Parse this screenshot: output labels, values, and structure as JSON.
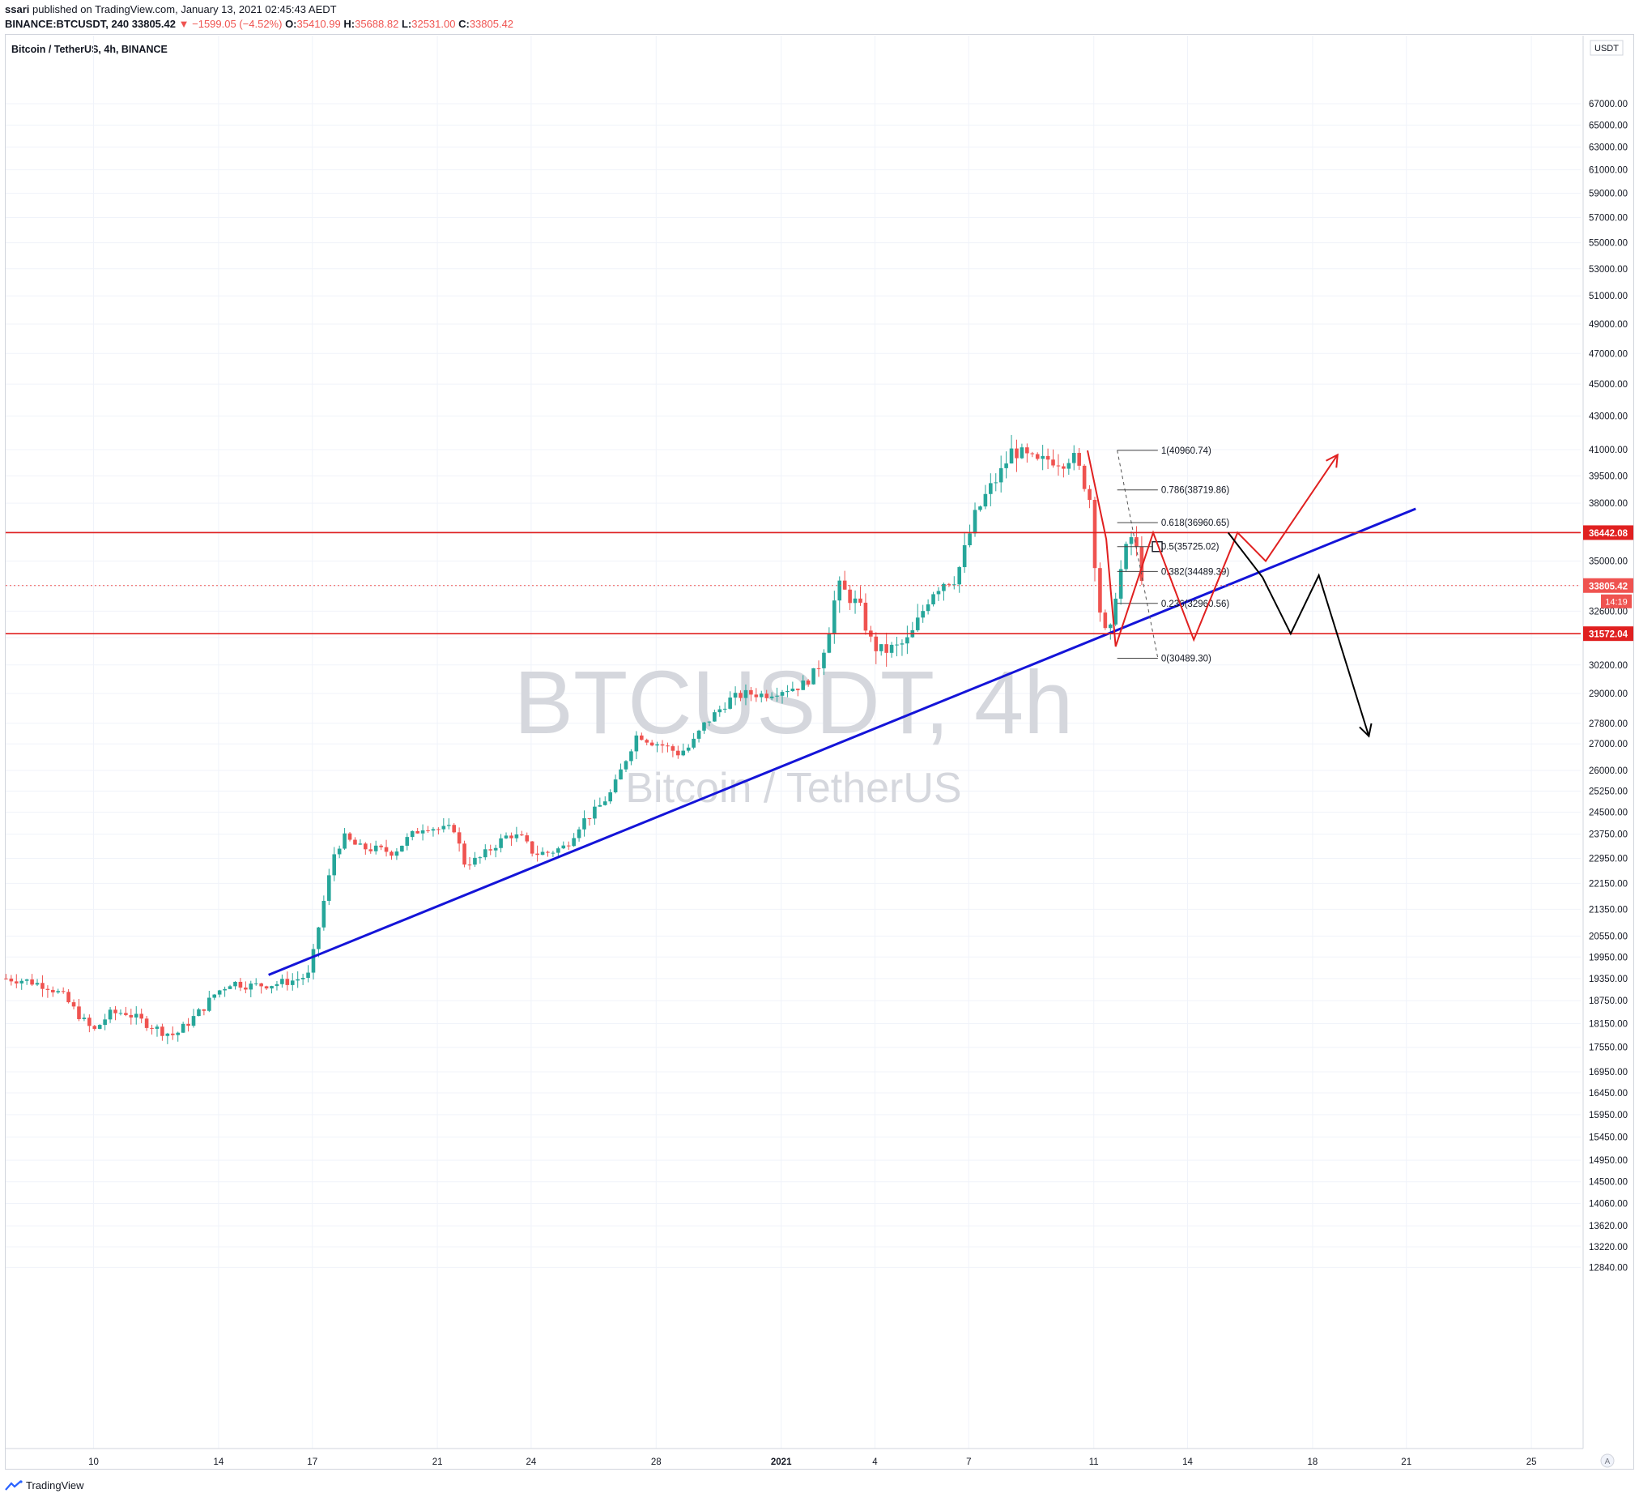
{
  "header": {
    "author": "ssari",
    "published_text": "published on TradingView.com, January 13, 2021 02:45:43 AEDT",
    "symbol_line": "BINANCE:BTCUSDT, 240",
    "price": "33805.42",
    "change": "−1599.05 (−4.52%)",
    "o_label": "O:",
    "o_value": "35410.99",
    "h_label": "H:",
    "h_value": "35688.82",
    "l_label": "L:",
    "l_value": "32531.00",
    "c_label": "C:",
    "c_value": "33805.42"
  },
  "pair_title": "Bitcoin / TetherUS, 4h, BINANCE",
  "footer": {
    "brand": "TradingView"
  },
  "colors": {
    "up": "#26a69a",
    "down": "#ef5350",
    "trendline": "#1414d8",
    "level": "#e02020",
    "grid": "#f0f3fa",
    "axis_text": "#131722",
    "watermark": "#d5d7dd"
  },
  "chart_data": {
    "type": "candlestick",
    "symbol": "BTCUSDT",
    "interval": "4h",
    "watermark": {
      "main": "BTCUSDT, 4h",
      "sub": "Bitcoin / TetherUS"
    },
    "currency": "USDT",
    "y_scale": "log",
    "y_ticks": [
      67000,
      65000,
      63000,
      61000,
      59000,
      57000,
      55000,
      53000,
      51000,
      49000,
      47000,
      45000,
      43000,
      41000,
      39500,
      38000,
      36500,
      35000,
      33800,
      32600,
      31400,
      30200,
      29000,
      27800,
      27000,
      26000,
      25250,
      24500,
      23750,
      22950,
      22150,
      21350,
      20550,
      19950,
      19350,
      18750,
      18150,
      17550,
      16950,
      16450,
      15950,
      15450,
      14950,
      14500,
      14060,
      13620,
      13220,
      12840
    ],
    "y_tick_labels": [
      "67000.00",
      "65000.00",
      "63000.00",
      "61000.00",
      "59000.00",
      "57000.00",
      "55000.00",
      "53000.00",
      "51000.00",
      "49000.00",
      "47000.00",
      "45000.00",
      "43000.00",
      "41000.00",
      "39500.00",
      "38000.00",
      "36500.00",
      "35000.00",
      "33800.00",
      "32600.00",
      "31400.00",
      "30200.00",
      "29000.00",
      "27800.00",
      "27000.00",
      "26000.00",
      "25250.00",
      "24500.00",
      "23750.00",
      "22950.00",
      "22150.00",
      "21350.00",
      "20550.00",
      "19950.00",
      "19350.00",
      "18750.00",
      "18150.00",
      "17550.00",
      "16950.00",
      "16450.00",
      "15950.00",
      "15450.00",
      "14950.00",
      "14500.00",
      "14060.00",
      "13620.00",
      "13220.00",
      "12840.00"
    ],
    "x_ticks": [
      {
        "label": "10",
        "day": 10
      },
      {
        "label": "14",
        "day": 14
      },
      {
        "label": "17",
        "day": 17
      },
      {
        "label": "21",
        "day": 21
      },
      {
        "label": "24",
        "day": 24
      },
      {
        "label": "28",
        "day": 28
      },
      {
        "label": "2021",
        "day": 32
      },
      {
        "label": "4",
        "day": 35
      },
      {
        "label": "7",
        "day": 38
      },
      {
        "label": "11",
        "day": 42
      },
      {
        "label": "14",
        "day": 45
      },
      {
        "label": "18",
        "day": 49
      },
      {
        "label": "21",
        "day": 52
      },
      {
        "label": "25",
        "day": 56
      }
    ],
    "price_path": [
      [
        7.2,
        19350
      ],
      [
        7.8,
        19300
      ],
      [
        8.5,
        19150
      ],
      [
        9.0,
        18900
      ],
      [
        9.6,
        18300
      ],
      [
        10.0,
        17950
      ],
      [
        10.5,
        18400
      ],
      [
        11.0,
        18450
      ],
      [
        11.7,
        18150
      ],
      [
        12.2,
        17950
      ],
      [
        12.6,
        17850
      ],
      [
        13.0,
        18150
      ],
      [
        13.5,
        18550
      ],
      [
        13.9,
        18950
      ],
      [
        14.4,
        19250
      ],
      [
        15.0,
        19150
      ],
      [
        15.8,
        19200
      ],
      [
        16.4,
        19300
      ],
      [
        16.9,
        19450
      ],
      [
        17.3,
        21300
      ],
      [
        17.7,
        23100
      ],
      [
        18.0,
        23650
      ],
      [
        18.5,
        23300
      ],
      [
        19.0,
        23250
      ],
      [
        19.6,
        23150
      ],
      [
        20.1,
        23650
      ],
      [
        20.6,
        24050
      ],
      [
        21.1,
        23900
      ],
      [
        21.6,
        23950
      ],
      [
        21.8,
        22800
      ],
      [
        22.3,
        22900
      ],
      [
        22.8,
        23350
      ],
      [
        23.3,
        23750
      ],
      [
        23.7,
        23600
      ],
      [
        24.1,
        23100
      ],
      [
        24.6,
        23150
      ],
      [
        25.1,
        23350
      ],
      [
        25.6,
        24150
      ],
      [
        26.1,
        24600
      ],
      [
        26.6,
        25250
      ],
      [
        27.0,
        26350
      ],
      [
        27.4,
        27400
      ],
      [
        27.8,
        27100
      ],
      [
        28.2,
        26950
      ],
      [
        28.7,
        26650
      ],
      [
        29.1,
        26900
      ],
      [
        29.5,
        27700
      ],
      [
        29.9,
        28200
      ],
      [
        30.4,
        28800
      ],
      [
        30.9,
        29000
      ],
      [
        31.5,
        28950
      ],
      [
        32.0,
        29150
      ],
      [
        32.6,
        29300
      ],
      [
        33.1,
        29800
      ],
      [
        33.5,
        31600
      ],
      [
        33.8,
        33800
      ],
      [
        34.1,
        33400
      ],
      [
        34.5,
        32800
      ],
      [
        34.9,
        31100
      ],
      [
        35.2,
        30800
      ],
      [
        35.7,
        30950
      ],
      [
        36.1,
        31300
      ],
      [
        36.4,
        32200
      ],
      [
        36.8,
        33500
      ],
      [
        37.2,
        34000
      ],
      [
        37.6,
        34200
      ],
      [
        37.9,
        35700
      ],
      [
        38.2,
        37300
      ],
      [
        38.6,
        38600
      ],
      [
        39.0,
        39600
      ],
      [
        39.4,
        41000
      ],
      [
        39.8,
        40600
      ],
      [
        40.2,
        40200
      ],
      [
        40.6,
        40500
      ],
      [
        41.0,
        40300
      ],
      [
        41.3,
        40700
      ],
      [
        41.6,
        39600
      ],
      [
        41.9,
        38100
      ],
      [
        42.1,
        33600
      ],
      [
        42.3,
        31700
      ],
      [
        42.5,
        31300
      ],
      [
        42.7,
        33500
      ],
      [
        43.0,
        35400
      ],
      [
        43.2,
        36200
      ],
      [
        43.4,
        35400
      ],
      [
        43.6,
        33805
      ]
    ],
    "fibonacci": {
      "high": 40960.74,
      "low": 30489.3,
      "levels": [
        {
          "label": "1(40960.74)",
          "price": 40960.74
        },
        {
          "label": "0.786(38719.86)",
          "price": 38719.86
        },
        {
          "label": "0.618(36960.65)",
          "price": 36960.65
        },
        {
          "label": "0.5(35725.02)",
          "price": 35725.02
        },
        {
          "label": "0.382(34489.39)",
          "price": 34489.39
        },
        {
          "label": "0.236(32960.56)",
          "price": 32960.56
        },
        {
          "label": "0(30489.30)",
          "price": 30489.3
        }
      ]
    },
    "horizontal_levels": [
      {
        "label": "36442.08",
        "price": 36442.08
      },
      {
        "label": "31572.04",
        "price": 31572.04
      }
    ],
    "current_price": {
      "label": "33805.42",
      "price": 33805.42,
      "countdown": "14:19"
    },
    "trendline": [
      [
        15.6,
        19450
      ],
      [
        52.3,
        37700
      ]
    ],
    "projection_red": [
      [
        41.8,
        40950
      ],
      [
        42.4,
        36100
      ],
      [
        42.7,
        31000
      ],
      [
        43.9,
        36442
      ],
      [
        45.2,
        31300
      ],
      [
        46.6,
        36442
      ],
      [
        47.5,
        35000
      ],
      [
        49.8,
        40700
      ]
    ],
    "projection_black": [
      [
        46.3,
        36442
      ],
      [
        47.4,
        34200
      ],
      [
        48.3,
        31572
      ],
      [
        49.2,
        34300
      ],
      [
        50.8,
        27300
      ]
    ]
  }
}
